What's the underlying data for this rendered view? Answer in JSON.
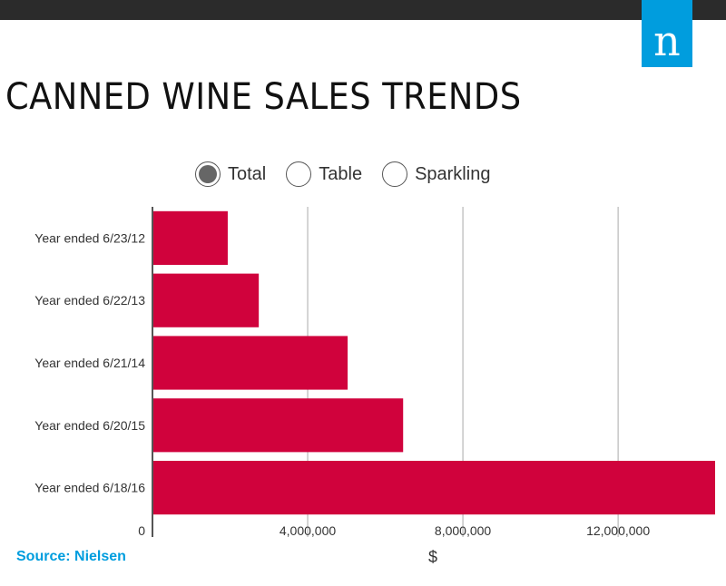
{
  "logo": {
    "letter": "n",
    "color": "#009dde"
  },
  "title": "CANNED WINE SALES TRENDS",
  "toggles": [
    {
      "label": "Total",
      "selected": true
    },
    {
      "label": "Table",
      "selected": false
    },
    {
      "label": "Sparkling",
      "selected": false
    }
  ],
  "source": "Source: Nielsen",
  "chart_data": {
    "type": "bar",
    "orientation": "horizontal",
    "categories": [
      "Year ended 6/23/12",
      "Year ended 6/22/13",
      "Year ended 6/21/14",
      "Year ended 6/20/15",
      "Year ended 6/18/16"
    ],
    "values": [
      1940000,
      2740000,
      5030000,
      6460000,
      14500000
    ],
    "xlabel": "$",
    "xlim": [
      0,
      14500000
    ],
    "xticks": [
      0,
      4000000,
      8000000,
      12000000
    ],
    "xtick_labels": [
      "0",
      "4,000,000",
      "8,000,000",
      "12,000,000"
    ],
    "bar_color": "#d0023c",
    "grid": true
  }
}
